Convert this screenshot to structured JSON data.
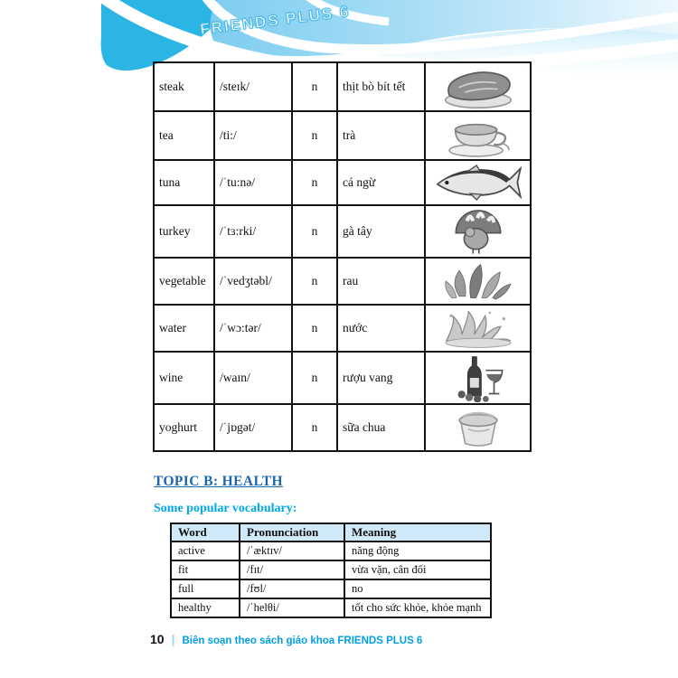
{
  "header": {
    "banner_title": "FRIENDS PLUS 6"
  },
  "main_table": {
    "rows": [
      {
        "word": "steak",
        "pron": "/steɪk/",
        "pos": "n",
        "meaning": "thịt bò bít tết",
        "image": "steak"
      },
      {
        "word": "tea",
        "pron": "/ti:/",
        "pos": "n",
        "meaning": "trà",
        "image": "tea"
      },
      {
        "word": "tuna",
        "pron": "/ˈtu:nə/",
        "pos": "n",
        "meaning": "cá ngừ",
        "image": "tuna"
      },
      {
        "word": "turkey",
        "pron": "/ˈtɜ:rki/",
        "pos": "n",
        "meaning": "gà tây",
        "image": "turkey"
      },
      {
        "word": "vegetable",
        "pron": "/ˈvedʒtəbl/",
        "pos": "n",
        "meaning": "rau",
        "image": "vegetable"
      },
      {
        "word": "water",
        "pron": "/ˈwɔ:tər/",
        "pos": "n",
        "meaning": "nước",
        "image": "water"
      },
      {
        "word": "wine",
        "pron": "/waɪn/",
        "pos": "n",
        "meaning": "rượu vang",
        "image": "wine"
      },
      {
        "word": "yoghurt",
        "pron": "/ˈjɒgət/",
        "pos": "n",
        "meaning": "sữa chua",
        "image": "yoghurt"
      }
    ]
  },
  "topic_section": {
    "heading": "TOPIC B: HEALTH",
    "subheading": "Some popular vocabulary:"
  },
  "health_table": {
    "headers": [
      "Word",
      "Pronunciation",
      "Meaning"
    ],
    "rows": [
      {
        "word": "active",
        "pron": "/ˈæktɪv/",
        "meaning": "năng động"
      },
      {
        "word": "fit",
        "pron": "/fɪt/",
        "meaning": "vừa vặn, cân đối"
      },
      {
        "word": "full",
        "pron": "/fʊl/",
        "meaning": "no"
      },
      {
        "word": "healthy",
        "pron": "/ˈhelθi/",
        "meaning": "tốt cho sức khỏe, khỏe mạnh"
      }
    ]
  },
  "footer": {
    "page_number": "10",
    "separator": "|",
    "credit": "Biên soạn theo sách giáo khoa FRIENDS PLUS 6"
  },
  "icons": [
    "steak-image",
    "tea-image",
    "tuna-image",
    "turkey-image",
    "vegetable-image",
    "water-image",
    "wine-image",
    "yoghurt-image"
  ],
  "colors": {
    "banner_cyan": "#2ab5e5",
    "band_blue": "#8ed4f0",
    "heading_blue": "#1c66ae",
    "subheading_blue": "#00a7e8",
    "table_header_bg": "#cfe9f8",
    "footer_blue": "#00a0e3"
  }
}
